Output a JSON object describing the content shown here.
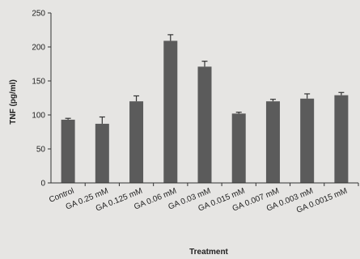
{
  "chart_data": {
    "type": "bar",
    "title": "",
    "xlabel": "Treatment",
    "ylabel": "TNF (pg/ml)",
    "ylim": [
      0,
      250
    ],
    "yticks": [
      0,
      50,
      100,
      150,
      200,
      250
    ],
    "grid": false,
    "legend": "none",
    "bar_color": "#5b5b5b",
    "categories": [
      "Control",
      "GA 0.25 mM",
      "GA 0.125 mM",
      "GA 0.06 mM",
      "GA 0.03 mM",
      "GA 0.015 mM",
      "GA 0.007 mM",
      "GA 0.003 mM",
      "GA 0.0015 mM"
    ],
    "values": [
      93,
      87,
      120,
      209,
      171,
      102,
      120,
      124,
      129
    ],
    "errors": [
      2,
      10,
      8,
      9,
      8,
      2,
      3,
      7,
      4
    ]
  }
}
